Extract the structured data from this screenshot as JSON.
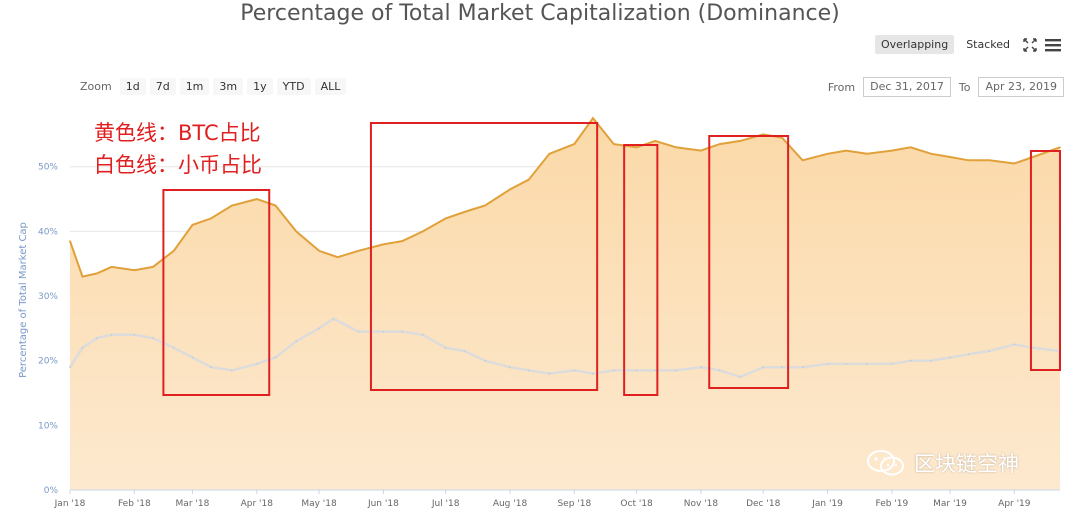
{
  "title": "Percentage of Total Market Capitalization (Dominance)",
  "toolbar": {
    "overlapping_label": "Overlapping",
    "stacked_label": "Stacked",
    "fullscreen_icon": "fullscreen-icon",
    "menu_icon": "hamburger-menu-icon"
  },
  "zoom": {
    "label": "Zoom",
    "buttons": [
      "1d",
      "7d",
      "1m",
      "3m",
      "1y",
      "YTD",
      "ALL"
    ]
  },
  "range": {
    "from_label": "From",
    "from_value": "Dec 31, 2017",
    "to_label": "To",
    "to_value": "Apr 23, 2019"
  },
  "annotations": {
    "line1": "黄色线：BTC占比",
    "line2": "白色线：小币占比"
  },
  "watermark": {
    "text": "区块链空神",
    "icon": "wechat-icon"
  },
  "colors": {
    "btc_line": "#e0a03a",
    "btc_fill": "#fbd9a8",
    "alt_line": "#dcdcdc",
    "highlight_box": "#e02020",
    "axis_text": "#7a99c8"
  },
  "chart_data": {
    "type": "area",
    "ylabel": "Percentage of Total Market Cap",
    "ylim": [
      0,
      58
    ],
    "yticks": [
      "0%",
      "10%",
      "20%",
      "30%",
      "40%",
      "50%"
    ],
    "xticks": [
      "Jan '18",
      "Feb '18",
      "Mar '18",
      "Apr '18",
      "May '18",
      "Jun '18",
      "Jul '18",
      "Aug '18",
      "Sep '18",
      "Oct '18",
      "Nov '18",
      "Dec '18",
      "Jan '19",
      "Feb '19",
      "Mar '19",
      "Apr '19"
    ],
    "x_range": [
      "2018-01-01",
      "2019-04-23"
    ],
    "series": [
      {
        "name": "",
        "values": [
          [
            "2018-01-01",
            38.5
          ],
          [
            "2018-01-07",
            33
          ],
          [
            "2018-01-14",
            33.5
          ],
          [
            "2018-01-21",
            34.5
          ],
          [
            "2018-02-01",
            34
          ],
          [
            "2018-02-10",
            34.5
          ],
          [
            "2018-02-20",
            37
          ],
          [
            "2018-03-01",
            41
          ],
          [
            "2018-03-10",
            42
          ],
          [
            "2018-03-20",
            44
          ],
          [
            "2018-04-01",
            45
          ],
          [
            "2018-04-10",
            44
          ],
          [
            "2018-04-20",
            40
          ],
          [
            "2018-05-01",
            37
          ],
          [
            "2018-05-10",
            36
          ],
          [
            "2018-05-20",
            37
          ],
          [
            "2018-06-01",
            38
          ],
          [
            "2018-06-10",
            38.5
          ],
          [
            "2018-06-20",
            40
          ],
          [
            "2018-07-01",
            42
          ],
          [
            "2018-07-10",
            43
          ],
          [
            "2018-07-20",
            44
          ],
          [
            "2018-08-01",
            46.5
          ],
          [
            "2018-08-10",
            48
          ],
          [
            "2018-08-20",
            52
          ],
          [
            "2018-09-01",
            53.5
          ],
          [
            "2018-09-10",
            57.5
          ],
          [
            "2018-09-20",
            53.5
          ],
          [
            "2018-10-01",
            53
          ],
          [
            "2018-10-10",
            54
          ],
          [
            "2018-10-20",
            53
          ],
          [
            "2018-11-01",
            52.5
          ],
          [
            "2018-11-10",
            53.5
          ],
          [
            "2018-11-20",
            54
          ],
          [
            "2018-12-01",
            55
          ],
          [
            "2018-12-10",
            54.5
          ],
          [
            "2018-12-20",
            51
          ],
          [
            "2019-01-01",
            52
          ],
          [
            "2019-01-10",
            52.5
          ],
          [
            "2019-01-20",
            52
          ],
          [
            "2019-02-01",
            52.5
          ],
          [
            "2019-02-10",
            53
          ],
          [
            "2019-02-20",
            52
          ],
          [
            "2019-03-01",
            51.5
          ],
          [
            "2019-03-10",
            51
          ],
          [
            "2019-03-20",
            51
          ],
          [
            "2019-04-01",
            50.5
          ],
          [
            "2019-04-10",
            51.5
          ],
          [
            "2019-04-23",
            53
          ]
        ]
      },
      {
        "name": "",
        "values": [
          [
            "2018-01-01",
            19
          ],
          [
            "2018-01-07",
            22
          ],
          [
            "2018-01-14",
            23.5
          ],
          [
            "2018-01-21",
            24
          ],
          [
            "2018-02-01",
            24
          ],
          [
            "2018-02-10",
            23.5
          ],
          [
            "2018-02-20",
            22
          ],
          [
            "2018-03-01",
            20.5
          ],
          [
            "2018-03-10",
            19
          ],
          [
            "2018-03-20",
            18.5
          ],
          [
            "2018-04-01",
            19.5
          ],
          [
            "2018-04-10",
            20.5
          ],
          [
            "2018-04-20",
            23
          ],
          [
            "2018-05-01",
            25
          ],
          [
            "2018-05-08",
            26.5
          ],
          [
            "2018-05-20",
            24.5
          ],
          [
            "2018-06-01",
            24.5
          ],
          [
            "2018-06-10",
            24.5
          ],
          [
            "2018-06-20",
            24
          ],
          [
            "2018-07-01",
            22
          ],
          [
            "2018-07-10",
            21.5
          ],
          [
            "2018-07-20",
            20
          ],
          [
            "2018-08-01",
            19
          ],
          [
            "2018-08-10",
            18.5
          ],
          [
            "2018-08-20",
            18
          ],
          [
            "2018-09-01",
            18.5
          ],
          [
            "2018-09-10",
            18
          ],
          [
            "2018-09-20",
            18.5
          ],
          [
            "2018-10-01",
            18.5
          ],
          [
            "2018-10-10",
            18.5
          ],
          [
            "2018-10-20",
            18.5
          ],
          [
            "2018-11-01",
            19
          ],
          [
            "2018-11-10",
            18.5
          ],
          [
            "2018-11-20",
            17.5
          ],
          [
            "2018-12-01",
            19
          ],
          [
            "2018-12-10",
            19
          ],
          [
            "2018-12-20",
            19
          ],
          [
            "2019-01-01",
            19.5
          ],
          [
            "2019-01-10",
            19.5
          ],
          [
            "2019-01-20",
            19.5
          ],
          [
            "2019-02-01",
            19.5
          ],
          [
            "2019-02-10",
            20
          ],
          [
            "2019-02-20",
            20
          ],
          [
            "2019-03-01",
            20.5
          ],
          [
            "2019-03-10",
            21
          ],
          [
            "2019-03-20",
            21.5
          ],
          [
            "2019-04-01",
            22.5
          ],
          [
            "2019-04-10",
            22
          ],
          [
            "2019-04-23",
            21.5
          ]
        ]
      }
    ],
    "highlight_regions": [
      {
        "from": "2018-02-15",
        "to": "2018-04-07"
      },
      {
        "from": "2018-05-26",
        "to": "2018-09-12"
      },
      {
        "from": "2018-09-25",
        "to": "2018-10-11"
      },
      {
        "from": "2018-11-05",
        "to": "2018-12-13"
      },
      {
        "from": "2019-04-09",
        "to": "2019-04-23"
      }
    ]
  }
}
